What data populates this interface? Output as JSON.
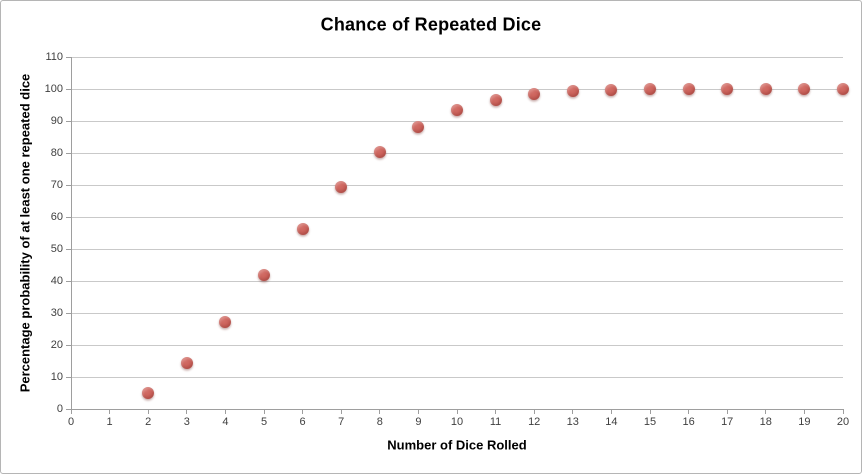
{
  "chart_data": {
    "type": "scatter",
    "title": "Chance of Repeated Dice",
    "xlabel": "Number of Dice Rolled",
    "ylabel": "Percentage probability of at least one repeated dice",
    "x": [
      2,
      3,
      4,
      5,
      6,
      7,
      8,
      9,
      10,
      11,
      12,
      13,
      14,
      15,
      16,
      17,
      18,
      19,
      20
    ],
    "y": [
      5.0,
      14.5,
      27.3,
      41.9,
      56.4,
      69.5,
      80.2,
      88.1,
      93.5,
      96.7,
      98.5,
      99.4,
      99.8,
      99.9,
      100,
      100,
      100,
      100,
      100
    ],
    "xlim": [
      0,
      20
    ],
    "ylim": [
      0,
      110
    ],
    "x_ticks": [
      0,
      1,
      2,
      3,
      4,
      5,
      6,
      7,
      8,
      9,
      10,
      11,
      12,
      13,
      14,
      15,
      16,
      17,
      18,
      19,
      20
    ],
    "y_ticks": [
      0,
      10,
      20,
      30,
      40,
      50,
      60,
      70,
      80,
      90,
      100,
      110
    ],
    "grid": "horizontal",
    "legend": "none",
    "marker": "circle",
    "colors": {
      "marker": "#c85a52",
      "marker_highlight": "#d4716a",
      "marker_shade": "#c04f48",
      "gridline": "#c9c9c9",
      "axis": "#9e9e9e",
      "tick_label": "#3f3f3f",
      "title": "#000000",
      "frame_border": "#b5b5b5",
      "background": "#ffffff"
    }
  }
}
